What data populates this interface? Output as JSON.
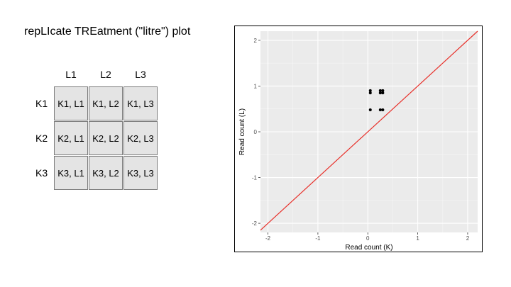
{
  "slide": {
    "title": "repLIcate TREatment (\"litre\") plot"
  },
  "design_grid": {
    "col_labels": [
      "L1",
      "L2",
      "L3"
    ],
    "row_labels": [
      "K1",
      "K2",
      "K3"
    ],
    "cells": [
      [
        "K1, L1",
        "K1, L2",
        "K1, L3"
      ],
      [
        "K2, L1",
        "K2, L2",
        "K2, L3"
      ],
      [
        "K3, L1",
        "K3, L2",
        "K3, L3"
      ]
    ]
  },
  "chart_data": {
    "type": "scatter",
    "title": "",
    "xlabel": "Read count (K)",
    "ylabel": "Read count (L)",
    "xlim": [
      -2.15,
      2.2
    ],
    "ylim": [
      -2.2,
      2.2
    ],
    "x_ticks": [
      -2,
      -1,
      0,
      1,
      2
    ],
    "y_ticks": [
      -2,
      -1,
      0,
      1,
      2
    ],
    "grid": true,
    "background": "#ebebeb",
    "points": [
      {
        "x": 0.05,
        "y": 0.9
      },
      {
        "x": 0.05,
        "y": 0.85
      },
      {
        "x": 0.25,
        "y": 0.9
      },
      {
        "x": 0.3,
        "y": 0.9
      },
      {
        "x": 0.25,
        "y": 0.85
      },
      {
        "x": 0.3,
        "y": 0.85
      },
      {
        "x": 0.05,
        "y": 0.48
      },
      {
        "x": 0.25,
        "y": 0.48
      },
      {
        "x": 0.3,
        "y": 0.48
      }
    ],
    "reference_line": {
      "slope": 1,
      "intercept": 0,
      "color": "#e8302a"
    },
    "point_color": "#000000"
  }
}
